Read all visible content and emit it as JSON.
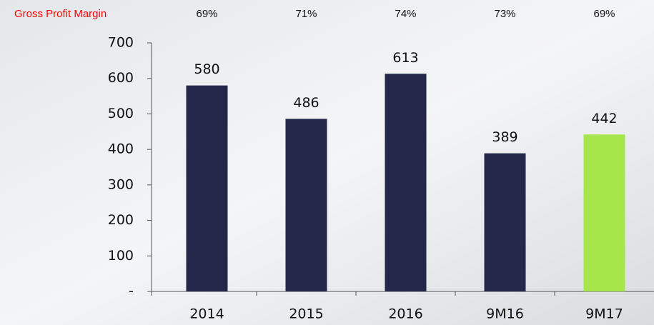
{
  "chart_data": {
    "type": "bar",
    "categories": [
      "2014",
      "2015",
      "2016",
      "9M16",
      "9M17"
    ],
    "values": [
      580,
      486,
      613,
      389,
      442
    ],
    "colors": [
      "#23284a",
      "#23284a",
      "#23284a",
      "#23284a",
      "#a6e64a"
    ],
    "ylim": [
      0,
      700
    ],
    "yticks": [
      {
        "value": 0,
        "label": "-"
      },
      100,
      200,
      300,
      400,
      500,
      600,
      700
    ],
    "grid": false,
    "annotation_row": {
      "label": "Gross Profit Margin",
      "values": [
        "69%",
        "71%",
        "74%",
        "73%",
        "69%"
      ]
    }
  }
}
